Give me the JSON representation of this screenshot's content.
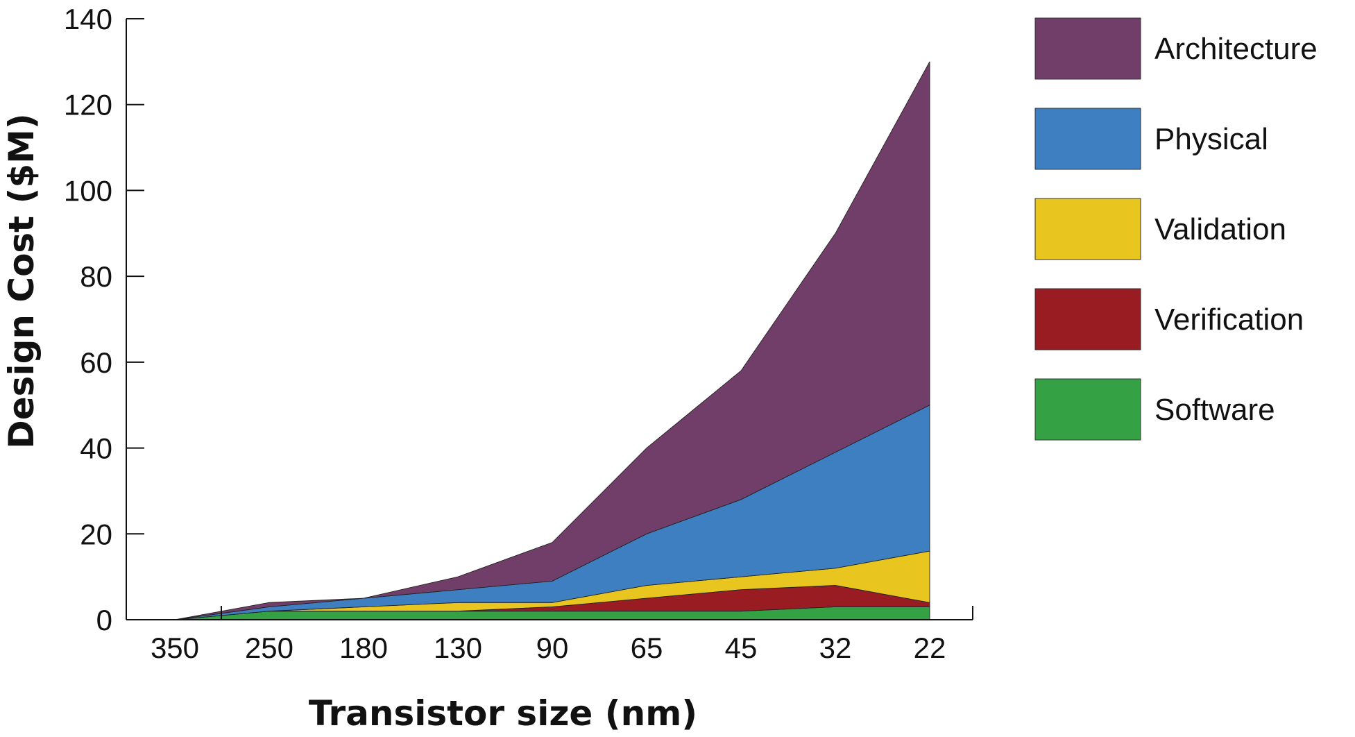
{
  "chart_data": {
    "type": "area",
    "stacked": true,
    "title": "",
    "xlabel": "Transistor size (nm)",
    "ylabel": "Design Cost ($M)",
    "categories": [
      "350",
      "250",
      "180",
      "130",
      "90",
      "65",
      "45",
      "32",
      "22"
    ],
    "ylim": [
      0,
      140
    ],
    "yticks": [
      0,
      20,
      40,
      60,
      80,
      100,
      120,
      140
    ],
    "grid": false,
    "legend_position": "right",
    "series": [
      {
        "name": "Software",
        "color": "#34a244",
        "values": [
          0,
          2,
          2,
          2,
          2,
          2,
          2,
          3,
          3
        ]
      },
      {
        "name": "Verification",
        "color": "#991c22",
        "values": [
          0,
          0,
          0,
          0,
          1,
          3,
          5,
          5,
          1
        ]
      },
      {
        "name": "Validation",
        "color": "#e8c51f",
        "values": [
          0,
          0,
          1,
          2,
          1,
          3,
          3,
          4,
          12
        ]
      },
      {
        "name": "Physical",
        "color": "#3e7fc1",
        "values": [
          0,
          1,
          2,
          3,
          5,
          12,
          18,
          27,
          34
        ]
      },
      {
        "name": "Architecture",
        "color": "#713e69",
        "values": [
          0,
          1,
          0,
          3,
          9,
          20,
          30,
          51,
          80
        ]
      }
    ]
  }
}
